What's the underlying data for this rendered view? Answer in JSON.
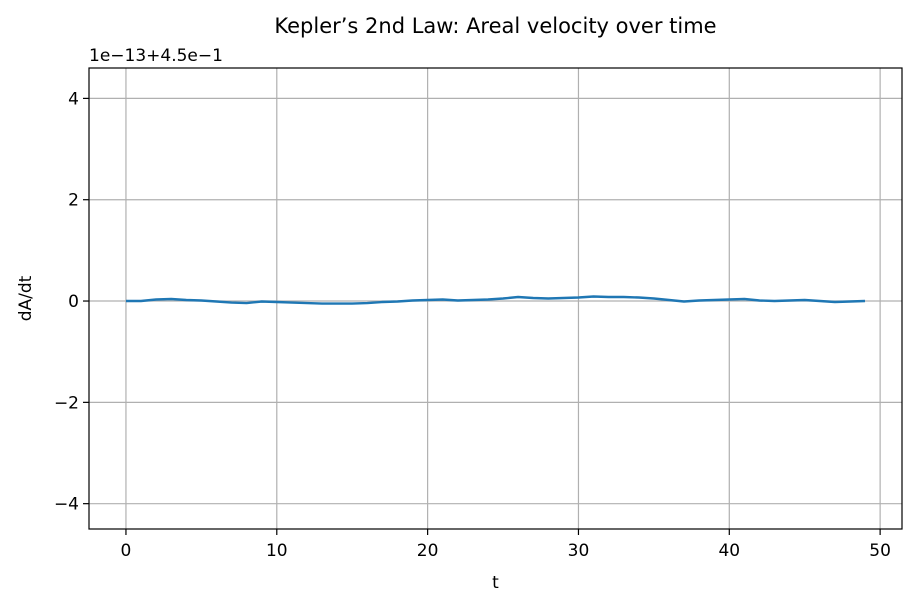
{
  "chart_data": {
    "type": "line",
    "title": "Kepler’s 2nd Law: Areal velocity over time",
    "xlabel": "t",
    "ylabel": "dA/dt",
    "offset_label": "1e−13+4.5e−1",
    "xlim": [
      -2.45,
      51.45
    ],
    "ylim": [
      -4.5,
      4.6
    ],
    "xticks": [
      0,
      10,
      20,
      30,
      40,
      50
    ],
    "xtick_labels": [
      "0",
      "10",
      "20",
      "30",
      "40",
      "50"
    ],
    "yticks": [
      -4,
      -2,
      0,
      2,
      4
    ],
    "ytick_labels": [
      "−4",
      "−2",
      "0",
      "2",
      "4"
    ],
    "grid": true,
    "series": [
      {
        "color": "#1f77b4",
        "x": [
          0,
          1,
          2,
          3,
          4,
          5,
          6,
          7,
          8,
          9,
          10,
          11,
          12,
          13,
          14,
          15,
          16,
          17,
          18,
          19,
          20,
          21,
          22,
          23,
          24,
          25,
          26,
          27,
          28,
          29,
          30,
          31,
          32,
          33,
          34,
          35,
          36,
          37,
          38,
          39,
          40,
          41,
          42,
          43,
          44,
          45,
          46,
          47,
          48,
          49
        ],
        "y": [
          0.0,
          0.0,
          0.03,
          0.04,
          0.02,
          0.01,
          -0.01,
          -0.03,
          -0.04,
          -0.01,
          -0.02,
          -0.03,
          -0.04,
          -0.05,
          -0.05,
          -0.05,
          -0.04,
          -0.02,
          -0.01,
          0.01,
          0.02,
          0.03,
          0.01,
          0.02,
          0.03,
          0.05,
          0.08,
          0.06,
          0.05,
          0.06,
          0.07,
          0.09,
          0.08,
          0.08,
          0.07,
          0.05,
          0.02,
          -0.01,
          0.01,
          0.02,
          0.03,
          0.04,
          0.01,
          0.0,
          0.01,
          0.02,
          0.0,
          -0.02,
          -0.01,
          0.0
        ]
      }
    ]
  }
}
